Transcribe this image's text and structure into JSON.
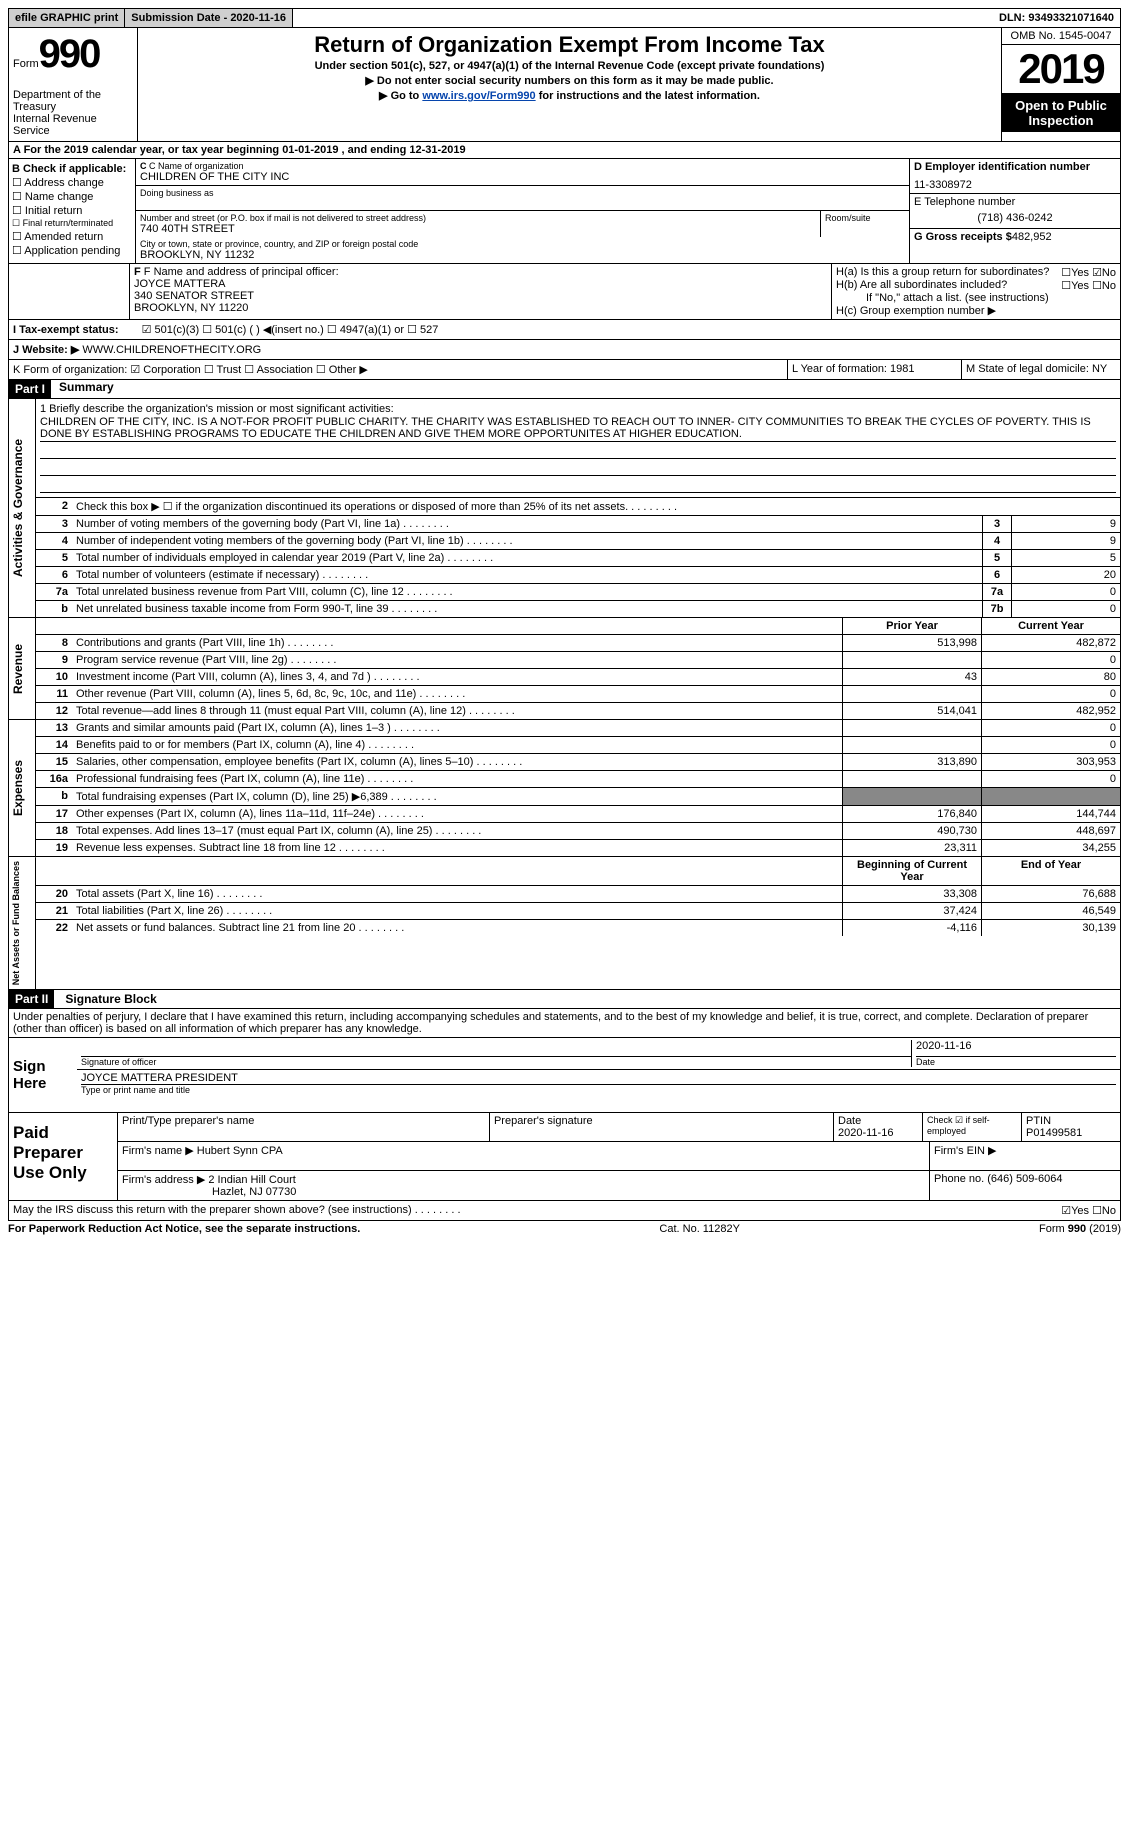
{
  "topbar": {
    "efile": "efile GRAPHIC print",
    "sub_label": "Submission Date - 2020-11-16",
    "dln": "DLN: 93493321071640"
  },
  "header": {
    "form_word": "Form",
    "form_num": "990",
    "dept": "Department of the Treasury\nInternal Revenue Service",
    "title": "Return of Organization Exempt From Income Tax",
    "sub1": "Under section 501(c), 527, or 4947(a)(1) of the Internal Revenue Code (except private foundations)",
    "sub2": "▶ Do not enter social security numbers on this form as it may be made public.",
    "sub3a": "▶ Go to ",
    "sub3_link": "www.irs.gov/Form990",
    "sub3b": " for instructions and the latest information.",
    "omb": "OMB No. 1545-0047",
    "year": "2019",
    "open": "Open to Public Inspection"
  },
  "row_a": "A  For the 2019 calendar year, or tax year beginning 01-01-2019    , and ending 12-31-2019",
  "section_b": {
    "label": "B Check if applicable:",
    "items": [
      "☐ Address change",
      "☐ Name change",
      "☐ Initial return",
      "☐ Final return/terminated",
      "☐ Amended return",
      "☐ Application pending"
    ]
  },
  "section_c": {
    "name_label": "C Name of organization",
    "name": "CHILDREN OF THE CITY INC",
    "dba_label": "Doing business as",
    "addr_label": "Number and street (or P.O. box if mail is not delivered to street address)",
    "room_label": "Room/suite",
    "addr": "740 40TH STREET",
    "city_label": "City or town, state or province, country, and ZIP or foreign postal code",
    "city": "BROOKLYN, NY  11232"
  },
  "section_d": {
    "label": "D Employer identification number",
    "ein": "11-3308972",
    "tel_label": "E Telephone number",
    "tel": "(718) 436-0242",
    "gross_label": "G Gross receipts $",
    "gross": "482,952"
  },
  "section_f": {
    "label": "F Name and address of principal officer:",
    "name": "JOYCE MATTERA",
    "addr1": "340 SENATOR STREET",
    "addr2": "BROOKLYN, NY  11220"
  },
  "section_h": {
    "ha": "H(a)  Is this a group return for subordinates?",
    "ha_ans": "☐Yes ☑No",
    "hb": "H(b)  Are all subordinates included?",
    "hb_ans": "☐Yes ☐No",
    "hb_note": "If \"No,\" attach a list. (see instructions)",
    "hc": "H(c)  Group exemption number ▶"
  },
  "row_i": {
    "label": "I  Tax-exempt status:",
    "opts": "☑ 501(c)(3)    ☐ 501(c) (  ) ◀(insert no.)    ☐ 4947(a)(1) or  ☐ 527"
  },
  "row_j": {
    "label": "J  Website: ▶",
    "value": "WWW.CHILDRENOFTHECITY.ORG"
  },
  "row_k": {
    "label": "K Form of organization:  ☑ Corporation ☐ Trust ☐ Association ☐ Other ▶",
    "l": "L Year of formation: 1981",
    "m": "M State of legal domicile: NY"
  },
  "part1": {
    "header": "Part I",
    "title": "Summary",
    "mission_label": "1   Briefly describe the organization's mission or most significant activities:",
    "mission": "CHILDREN OF THE CITY, INC. IS A NOT-FOR PROFIT PUBLIC CHARITY. THE CHARITY WAS ESTABLISHED TO REACH OUT TO INNER- CITY COMMUNITIES TO BREAK THE CYCLES OF POVERTY. THIS IS DONE BY ESTABLISHING PROGRAMS TO EDUCATE THE CHILDREN AND GIVE THEM MORE OPPORTUNITES AT HIGHER EDUCATION."
  },
  "lines_gov": [
    {
      "n": "2",
      "t": "Check this box ▶ ☐  if the organization discontinued its operations or disposed of more than 25% of its net assets.",
      "h": "",
      "v": ""
    },
    {
      "n": "3",
      "t": "Number of voting members of the governing body (Part VI, line 1a)",
      "h": "3",
      "v": "9"
    },
    {
      "n": "4",
      "t": "Number of independent voting members of the governing body (Part VI, line 1b)",
      "h": "4",
      "v": "9"
    },
    {
      "n": "5",
      "t": "Total number of individuals employed in calendar year 2019 (Part V, line 2a)",
      "h": "5",
      "v": "5"
    },
    {
      "n": "6",
      "t": "Total number of volunteers (estimate if necessary)",
      "h": "6",
      "v": "20"
    },
    {
      "n": "7a",
      "t": "Total unrelated business revenue from Part VIII, column (C), line 12",
      "h": "7a",
      "v": "0"
    },
    {
      "n": "b",
      "t": "Net unrelated business taxable income from Form 990-T, line 39",
      "h": "7b",
      "v": "0"
    }
  ],
  "rev_hdr": {
    "prior": "Prior Year",
    "current": "Current Year"
  },
  "lines_rev": [
    {
      "n": "8",
      "t": "Contributions and grants (Part VIII, line 1h)",
      "p": "513,998",
      "c": "482,872"
    },
    {
      "n": "9",
      "t": "Program service revenue (Part VIII, line 2g)",
      "p": "",
      "c": "0"
    },
    {
      "n": "10",
      "t": "Investment income (Part VIII, column (A), lines 3, 4, and 7d )",
      "p": "43",
      "c": "80"
    },
    {
      "n": "11",
      "t": "Other revenue (Part VIII, column (A), lines 5, 6d, 8c, 9c, 10c, and 11e)",
      "p": "",
      "c": "0"
    },
    {
      "n": "12",
      "t": "Total revenue—add lines 8 through 11 (must equal Part VIII, column (A), line 12)",
      "p": "514,041",
      "c": "482,952"
    }
  ],
  "lines_exp": [
    {
      "n": "13",
      "t": "Grants and similar amounts paid (Part IX, column (A), lines 1–3 )",
      "p": "",
      "c": "0"
    },
    {
      "n": "14",
      "t": "Benefits paid to or for members (Part IX, column (A), line 4)",
      "p": "",
      "c": "0"
    },
    {
      "n": "15",
      "t": "Salaries, other compensation, employee benefits (Part IX, column (A), lines 5–10)",
      "p": "313,890",
      "c": "303,953"
    },
    {
      "n": "16a",
      "t": "Professional fundraising fees (Part IX, column (A), line 11e)",
      "p": "",
      "c": "0"
    },
    {
      "n": "b",
      "t": "Total fundraising expenses (Part IX, column (D), line 25) ▶6,389",
      "p": "grey",
      "c": "grey"
    },
    {
      "n": "17",
      "t": "Other expenses (Part IX, column (A), lines 11a–11d, 11f–24e)",
      "p": "176,840",
      "c": "144,744"
    },
    {
      "n": "18",
      "t": "Total expenses. Add lines 13–17 (must equal Part IX, column (A), line 25)",
      "p": "490,730",
      "c": "448,697"
    },
    {
      "n": "19",
      "t": "Revenue less expenses. Subtract line 18 from line 12",
      "p": "23,311",
      "c": "34,255"
    }
  ],
  "net_hdr": {
    "begin": "Beginning of Current Year",
    "end": "End of Year"
  },
  "lines_net": [
    {
      "n": "20",
      "t": "Total assets (Part X, line 16)",
      "p": "33,308",
      "c": "76,688"
    },
    {
      "n": "21",
      "t": "Total liabilities (Part X, line 26)",
      "p": "37,424",
      "c": "46,549"
    },
    {
      "n": "22",
      "t": "Net assets or fund balances. Subtract line 21 from line 20",
      "p": "-4,116",
      "c": "30,139"
    }
  ],
  "vert_labels": {
    "gov": "Activities & Governance",
    "rev": "Revenue",
    "exp": "Expenses",
    "net": "Net Assets or Fund Balances"
  },
  "part2": {
    "header": "Part II",
    "title": "Signature Block",
    "perjury": "Under penalties of perjury, I declare that I have examined this return, including accompanying schedules and statements, and to the best of my knowledge and belief, it is true, correct, and complete. Declaration of preparer (other than officer) is based on all information of which preparer has any knowledge."
  },
  "sign": {
    "label": "Sign Here",
    "sig_label": "Signature of officer",
    "date": "2020-11-16",
    "date_label": "Date",
    "name": "JOYCE MATTERA  PRESIDENT",
    "name_label": "Type or print name and title"
  },
  "preparer": {
    "label": "Paid Preparer Use Only",
    "h1": "Print/Type preparer's name",
    "h2": "Preparer's signature",
    "h3": "Date",
    "h3v": "2020-11-16",
    "h4": "Check ☑ if self-employed",
    "h5": "PTIN",
    "h5v": "P01499581",
    "firm_label": "Firm's name    ▶",
    "firm": "Hubert Synn CPA",
    "ein_label": "Firm's EIN ▶",
    "addr_label": "Firm's address ▶",
    "addr": "2 Indian Hill Court",
    "addr2": "Hazlet, NJ  07730",
    "phone_label": "Phone no.",
    "phone": "(646) 509-6064"
  },
  "footer": {
    "discuss": "May the IRS discuss this return with the preparer shown above? (see instructions)",
    "discuss_ans": "☑Yes  ☐No",
    "paperwork": "For Paperwork Reduction Act Notice, see the separate instructions.",
    "cat": "Cat. No. 11282Y",
    "form": "Form 990 (2019)"
  }
}
